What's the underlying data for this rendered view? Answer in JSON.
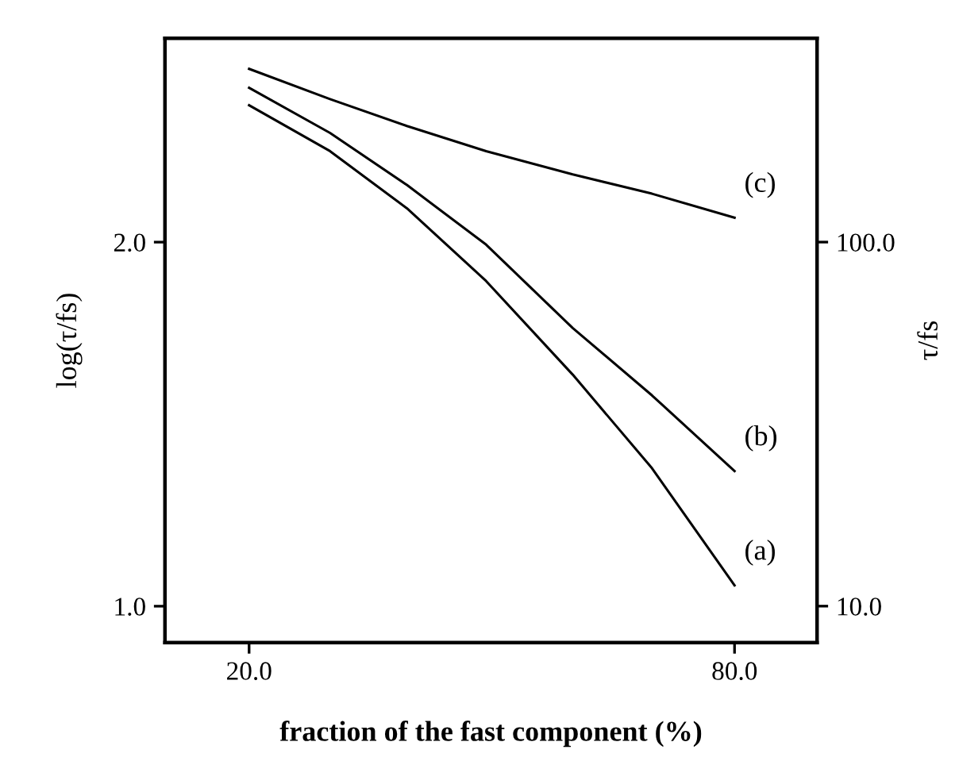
{
  "chart_data": {
    "type": "line",
    "xlabel": "fraction of the fast component (%)",
    "ylabel": "log(τ/fs)",
    "y2label": "τ/fs",
    "x": [
      20,
      30,
      39.5,
      49.3,
      60,
      69.8,
      80
    ],
    "series": [
      {
        "name": "(a)",
        "color": "#000000",
        "values": [
          2.376,
          2.25,
          2.093,
          1.893,
          1.636,
          1.379,
          1.057
        ]
      },
      {
        "name": "(b)",
        "color": "#000000",
        "values": [
          2.424,
          2.3,
          2.157,
          1.993,
          1.764,
          1.579,
          1.371
        ]
      },
      {
        "name": "(c)",
        "color": "#000000",
        "values": [
          2.476,
          2.393,
          2.319,
          2.25,
          2.186,
          2.133,
          2.067
        ]
      }
    ],
    "xlim": [
      9.6,
      90.2
    ],
    "ylim": [
      0.9,
      2.56
    ],
    "y2lim": [
      7.94,
      363
    ],
    "log": "y2",
    "xticks": [
      {
        "value": 20,
        "label": "20.0"
      },
      {
        "value": 80,
        "label": "80.0"
      }
    ],
    "yticks": [
      {
        "value": 1,
        "label": "1.0"
      },
      {
        "value": 2,
        "label": "2.0"
      }
    ],
    "y2ticks": [
      {
        "value": 10,
        "label": "10.0"
      },
      {
        "value": 100,
        "label": "100.0"
      }
    ],
    "grid": false,
    "legend": false,
    "marker": "none",
    "line_style": "solid"
  }
}
